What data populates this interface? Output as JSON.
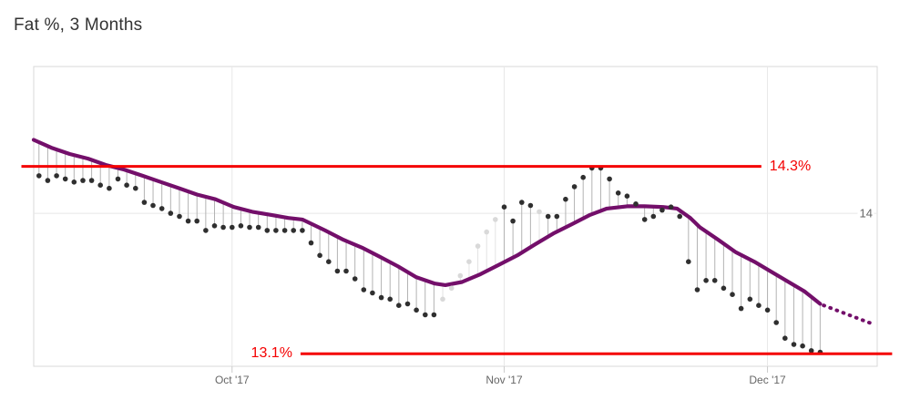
{
  "chart_data": {
    "type": "line",
    "title": "Fat %, 3 Months",
    "unit": "%",
    "x_axis": {
      "min_day": 0.4,
      "max_day": 96.5,
      "grid": true,
      "ticks": [
        {
          "day": 23,
          "label": "Oct '17"
        },
        {
          "day": 54,
          "label": "Nov '17"
        },
        {
          "day": 84,
          "label": "Dec '17"
        }
      ]
    },
    "y_axis": {
      "min": 13.02,
      "max": 14.94,
      "grid": true,
      "ticks": [
        {
          "value": 14,
          "label": "14"
        }
      ]
    },
    "annotations": [
      {
        "type": "hline",
        "value": 14.3,
        "label": "14.3%",
        "label_side": "right",
        "line_start_day": -1.0,
        "line_end_day": 83.3
      },
      {
        "type": "hline",
        "value": 13.1,
        "label": "13.1%",
        "label_side": "left",
        "line_start_day": 30.8,
        "line_end_day": 98.2
      }
    ],
    "trend_series": {
      "name": "trend-line",
      "points": [
        [
          0.4,
          14.47
        ],
        [
          2.4,
          14.42
        ],
        [
          4.5,
          14.38
        ],
        [
          6.6,
          14.35
        ],
        [
          8.6,
          14.31
        ],
        [
          10.7,
          14.28
        ],
        [
          12.8,
          14.24
        ],
        [
          14.9,
          14.2
        ],
        [
          17,
          14.16
        ],
        [
          19,
          14.12
        ],
        [
          21.1,
          14.09
        ],
        [
          23.2,
          14.04
        ],
        [
          25.3,
          14.01
        ],
        [
          27.4,
          13.99
        ],
        [
          29.4,
          13.97
        ],
        [
          31,
          13.96
        ],
        [
          33.6,
          13.89
        ],
        [
          35.7,
          13.83
        ],
        [
          37.8,
          13.78
        ],
        [
          39.9,
          13.72
        ],
        [
          41.9,
          13.66
        ],
        [
          44,
          13.59
        ],
        [
          46.1,
          13.55
        ],
        [
          47.3,
          13.54
        ],
        [
          49.2,
          13.56
        ],
        [
          51.3,
          13.61
        ],
        [
          53.4,
          13.67
        ],
        [
          55.5,
          13.73
        ],
        [
          57.5,
          13.8
        ],
        [
          59.6,
          13.87
        ],
        [
          61.7,
          13.93
        ],
        [
          63.8,
          13.99
        ],
        [
          65.7,
          14.03
        ],
        [
          68,
          14.045
        ],
        [
          70,
          14.045
        ],
        [
          72.1,
          14.04
        ],
        [
          73.7,
          14.03
        ],
        [
          75.2,
          13.97
        ],
        [
          76.3,
          13.91
        ],
        [
          78.4,
          13.83
        ],
        [
          80.4,
          13.75
        ],
        [
          82.5,
          13.69
        ],
        [
          84.6,
          13.62
        ],
        [
          86.7,
          13.55
        ],
        [
          88.2,
          13.5
        ],
        [
          90,
          13.42
        ]
      ]
    },
    "projection_series": {
      "name": "projection-dotted",
      "points": [
        [
          90.4,
          13.41
        ],
        [
          95.8,
          13.295
        ]
      ]
    },
    "scatter_series": {
      "name": "daily-readings",
      "points": [
        [
          1,
          14.24,
          0
        ],
        [
          2,
          14.21,
          0
        ],
        [
          3,
          14.24,
          0
        ],
        [
          4,
          14.22,
          0
        ],
        [
          5,
          14.2,
          0
        ],
        [
          6,
          14.21,
          0
        ],
        [
          7,
          14.21,
          0
        ],
        [
          8,
          14.18,
          0
        ],
        [
          9,
          14.16,
          0
        ],
        [
          10,
          14.22,
          0
        ],
        [
          11,
          14.18,
          0
        ],
        [
          12,
          14.16,
          0
        ],
        [
          13,
          14.07,
          0
        ],
        [
          14,
          14.05,
          0
        ],
        [
          15,
          14.03,
          0
        ],
        [
          16,
          14.0,
          0
        ],
        [
          17,
          13.98,
          0
        ],
        [
          18,
          13.95,
          0
        ],
        [
          19,
          13.95,
          0
        ],
        [
          20,
          13.89,
          0
        ],
        [
          21,
          13.92,
          0
        ],
        [
          22,
          13.91,
          0
        ],
        [
          23,
          13.91,
          0
        ],
        [
          24,
          13.92,
          0
        ],
        [
          25,
          13.91,
          0
        ],
        [
          26,
          13.91,
          0
        ],
        [
          27,
          13.89,
          0
        ],
        [
          28,
          13.89,
          0
        ],
        [
          29,
          13.89,
          0
        ],
        [
          30,
          13.89,
          0
        ],
        [
          31,
          13.89,
          0
        ],
        [
          32,
          13.81,
          0
        ],
        [
          33,
          13.73,
          0
        ],
        [
          34,
          13.69,
          0
        ],
        [
          35,
          13.63,
          0
        ],
        [
          36,
          13.63,
          0
        ],
        [
          37,
          13.58,
          0
        ],
        [
          38,
          13.51,
          0
        ],
        [
          39,
          13.49,
          0
        ],
        [
          40,
          13.46,
          0
        ],
        [
          41,
          13.45,
          0
        ],
        [
          42,
          13.41,
          0
        ],
        [
          43,
          13.42,
          0
        ],
        [
          44,
          13.38,
          0
        ],
        [
          45,
          13.35,
          0
        ],
        [
          46,
          13.35,
          0
        ],
        [
          47,
          13.45,
          1
        ],
        [
          48,
          13.52,
          1
        ],
        [
          49,
          13.6,
          1
        ],
        [
          50,
          13.69,
          1
        ],
        [
          51,
          13.79,
          1
        ],
        [
          52,
          13.88,
          1
        ],
        [
          53,
          13.96,
          1
        ],
        [
          54,
          14.04,
          0
        ],
        [
          55,
          13.95,
          0
        ],
        [
          56,
          14.07,
          0
        ],
        [
          57,
          14.05,
          0
        ],
        [
          58,
          14.01,
          1
        ],
        [
          59,
          13.98,
          0
        ],
        [
          60,
          13.98,
          0
        ],
        [
          61,
          14.09,
          0
        ],
        [
          62,
          14.17,
          0
        ],
        [
          63,
          14.23,
          0
        ],
        [
          64,
          14.29,
          0
        ],
        [
          65,
          14.29,
          0
        ],
        [
          66,
          14.22,
          0
        ],
        [
          67,
          14.13,
          0
        ],
        [
          68,
          14.11,
          0
        ],
        [
          69,
          14.06,
          0
        ],
        [
          70,
          13.96,
          0
        ],
        [
          71,
          13.98,
          0
        ],
        [
          72,
          14.02,
          0
        ],
        [
          73,
          14.04,
          0
        ],
        [
          74,
          13.98,
          0
        ],
        [
          75,
          13.69,
          0
        ],
        [
          76,
          13.51,
          0
        ],
        [
          77,
          13.57,
          0
        ],
        [
          78,
          13.57,
          0
        ],
        [
          79,
          13.52,
          0
        ],
        [
          80,
          13.48,
          0
        ],
        [
          81,
          13.39,
          0
        ],
        [
          82,
          13.45,
          0
        ],
        [
          83,
          13.41,
          0
        ],
        [
          84,
          13.38,
          0
        ],
        [
          85,
          13.3,
          0
        ],
        [
          86,
          13.2,
          0
        ],
        [
          87,
          13.16,
          0
        ],
        [
          88,
          13.15,
          0
        ],
        [
          89,
          13.12,
          0
        ],
        [
          90,
          13.11,
          0
        ]
      ]
    },
    "colors": {
      "trend": "#730f6a",
      "annotation_red": "#f40000",
      "dot_dark": "#2f2f2f",
      "dot_light": "#d9d9d9",
      "stem": "#b3b3b3",
      "stem_light": "#e3e3e3",
      "grid": "#e8e8e8",
      "border": "#d8d8d8",
      "tick": "#cccccc",
      "axis_text": "#666666",
      "title_text": "#333333"
    }
  }
}
